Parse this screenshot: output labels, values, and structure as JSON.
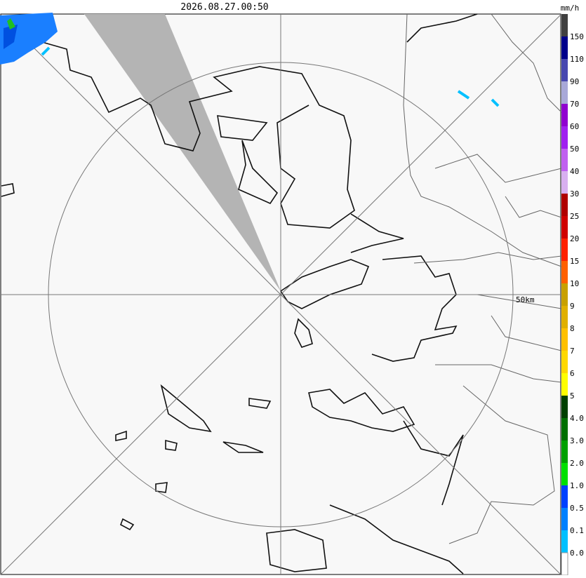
{
  "header": {
    "timestamp": "2026.08.27.00:50",
    "unit": "mm/h"
  },
  "map": {
    "range_label": "50km"
  },
  "legend": {
    "labels": [
      "150",
      "110",
      "90",
      "70",
      "60",
      "50",
      "40",
      "30",
      "25",
      "20",
      "15",
      "10",
      "9",
      "8",
      "7",
      "6",
      "5",
      "4.0",
      "3.0",
      "2.0",
      "1.0",
      "0.5",
      "0.1",
      "0.0"
    ]
  }
}
